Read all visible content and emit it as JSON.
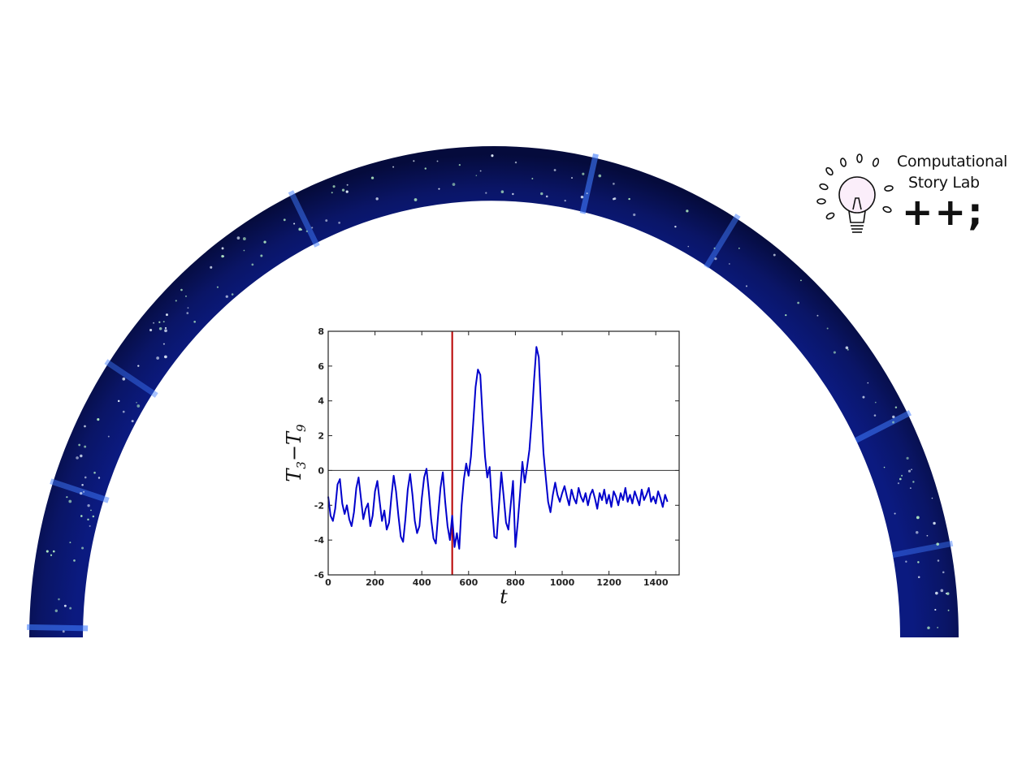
{
  "logo": {
    "line1": "Computational",
    "line2": "Story Lab",
    "line3": "++;",
    "icon": "lightbulb-icon"
  },
  "colors": {
    "arc_dark": "#08104a",
    "arc_mid": "#0f2aa8",
    "series": "#0000cc",
    "marker": "#b80000"
  },
  "chart_data": {
    "type": "line",
    "xlabel": "t",
    "ylabel": "T3 − T9",
    "ylabel_main": "T",
    "ylabel_sub1": "3",
    "ylabel_mid": "−T",
    "ylabel_sub2": "9",
    "xlim": [
      0,
      1500
    ],
    "ylim": [
      -6,
      8
    ],
    "xticks": [
      0,
      200,
      400,
      600,
      800,
      1000,
      1200,
      1400
    ],
    "yticks": [
      -6,
      -4,
      -2,
      0,
      2,
      4,
      6,
      8
    ],
    "hline": 0,
    "vline": 530,
    "grid": false,
    "series": [
      {
        "x": [
          0,
          10,
          20,
          30,
          40,
          50,
          60,
          70,
          80,
          90,
          100,
          110,
          120,
          130,
          140,
          150,
          160,
          170,
          180,
          190,
          200,
          210,
          220,
          230,
          240,
          250,
          260,
          270,
          280,
          290,
          300,
          310,
          320,
          330,
          340,
          350,
          360,
          370,
          380,
          390,
          400,
          410,
          420,
          430,
          440,
          450,
          460,
          470,
          480,
          490,
          500,
          510,
          520,
          530,
          540,
          550,
          560,
          570,
          580,
          590,
          600,
          610,
          620,
          630,
          640,
          650,
          660,
          670,
          680,
          690,
          700,
          710,
          720,
          730,
          740,
          750,
          760,
          770,
          780,
          790,
          800,
          810,
          820,
          830,
          840,
          850,
          860,
          870,
          880,
          890,
          900,
          910,
          920,
          930,
          940,
          950,
          960,
          970,
          980,
          990,
          1000,
          1010,
          1020,
          1030,
          1040,
          1050,
          1060,
          1070,
          1080,
          1090,
          1100,
          1110,
          1120,
          1130,
          1140,
          1150,
          1160,
          1170,
          1180,
          1190,
          1200,
          1210,
          1220,
          1230,
          1240,
          1250,
          1260,
          1270,
          1280,
          1290,
          1300,
          1310,
          1320,
          1330,
          1340,
          1350,
          1360,
          1370,
          1380,
          1390,
          1400,
          1410,
          1420,
          1430,
          1440,
          1450
        ],
        "y": [
          -1.5,
          -2.6,
          -2.9,
          -2.2,
          -0.8,
          -0.5,
          -1.9,
          -2.5,
          -2.0,
          -2.8,
          -3.2,
          -2.4,
          -1.0,
          -0.4,
          -1.6,
          -2.8,
          -2.2,
          -1.9,
          -3.2,
          -2.6,
          -1.2,
          -0.6,
          -1.8,
          -2.9,
          -2.3,
          -3.4,
          -3.0,
          -1.5,
          -0.3,
          -1.2,
          -2.6,
          -3.8,
          -4.1,
          -2.8,
          -1.1,
          -0.2,
          -1.4,
          -2.9,
          -3.6,
          -3.2,
          -1.6,
          -0.4,
          0.1,
          -1.2,
          -2.8,
          -3.9,
          -4.2,
          -2.5,
          -1.0,
          -0.1,
          -1.8,
          -3.2,
          -4.0,
          -2.6,
          -4.4,
          -3.6,
          -4.5,
          -2.0,
          -0.5,
          0.4,
          -0.3,
          0.8,
          2.8,
          4.8,
          5.8,
          5.5,
          3.0,
          0.8,
          -0.4,
          0.2,
          -2.0,
          -3.8,
          -3.9,
          -2.0,
          -0.1,
          -1.5,
          -3.0,
          -3.4,
          -2.0,
          -0.6,
          -4.4,
          -3.0,
          -1.3,
          0.5,
          -0.7,
          0.2,
          1.2,
          3.0,
          5.2,
          7.1,
          6.5,
          3.5,
          1.0,
          -0.4,
          -1.8,
          -2.4,
          -1.4,
          -0.7,
          -1.4,
          -1.8,
          -1.3,
          -0.9,
          -1.5,
          -2.0,
          -1.1,
          -1.6,
          -1.9,
          -1.0,
          -1.5,
          -1.8,
          -1.3,
          -2.0,
          -1.4,
          -1.1,
          -1.6,
          -2.2,
          -1.3,
          -1.7,
          -1.1,
          -1.9,
          -1.4,
          -2.1,
          -1.2,
          -1.5,
          -2.0,
          -1.3,
          -1.7,
          -1.0,
          -1.8,
          -1.4,
          -1.9,
          -1.2,
          -1.6,
          -2.0,
          -1.1,
          -1.7,
          -1.4,
          -1.0,
          -1.8,
          -1.5,
          -1.9,
          -1.2,
          -1.6,
          -2.1,
          -1.4,
          -1.8
        ]
      }
    ]
  }
}
